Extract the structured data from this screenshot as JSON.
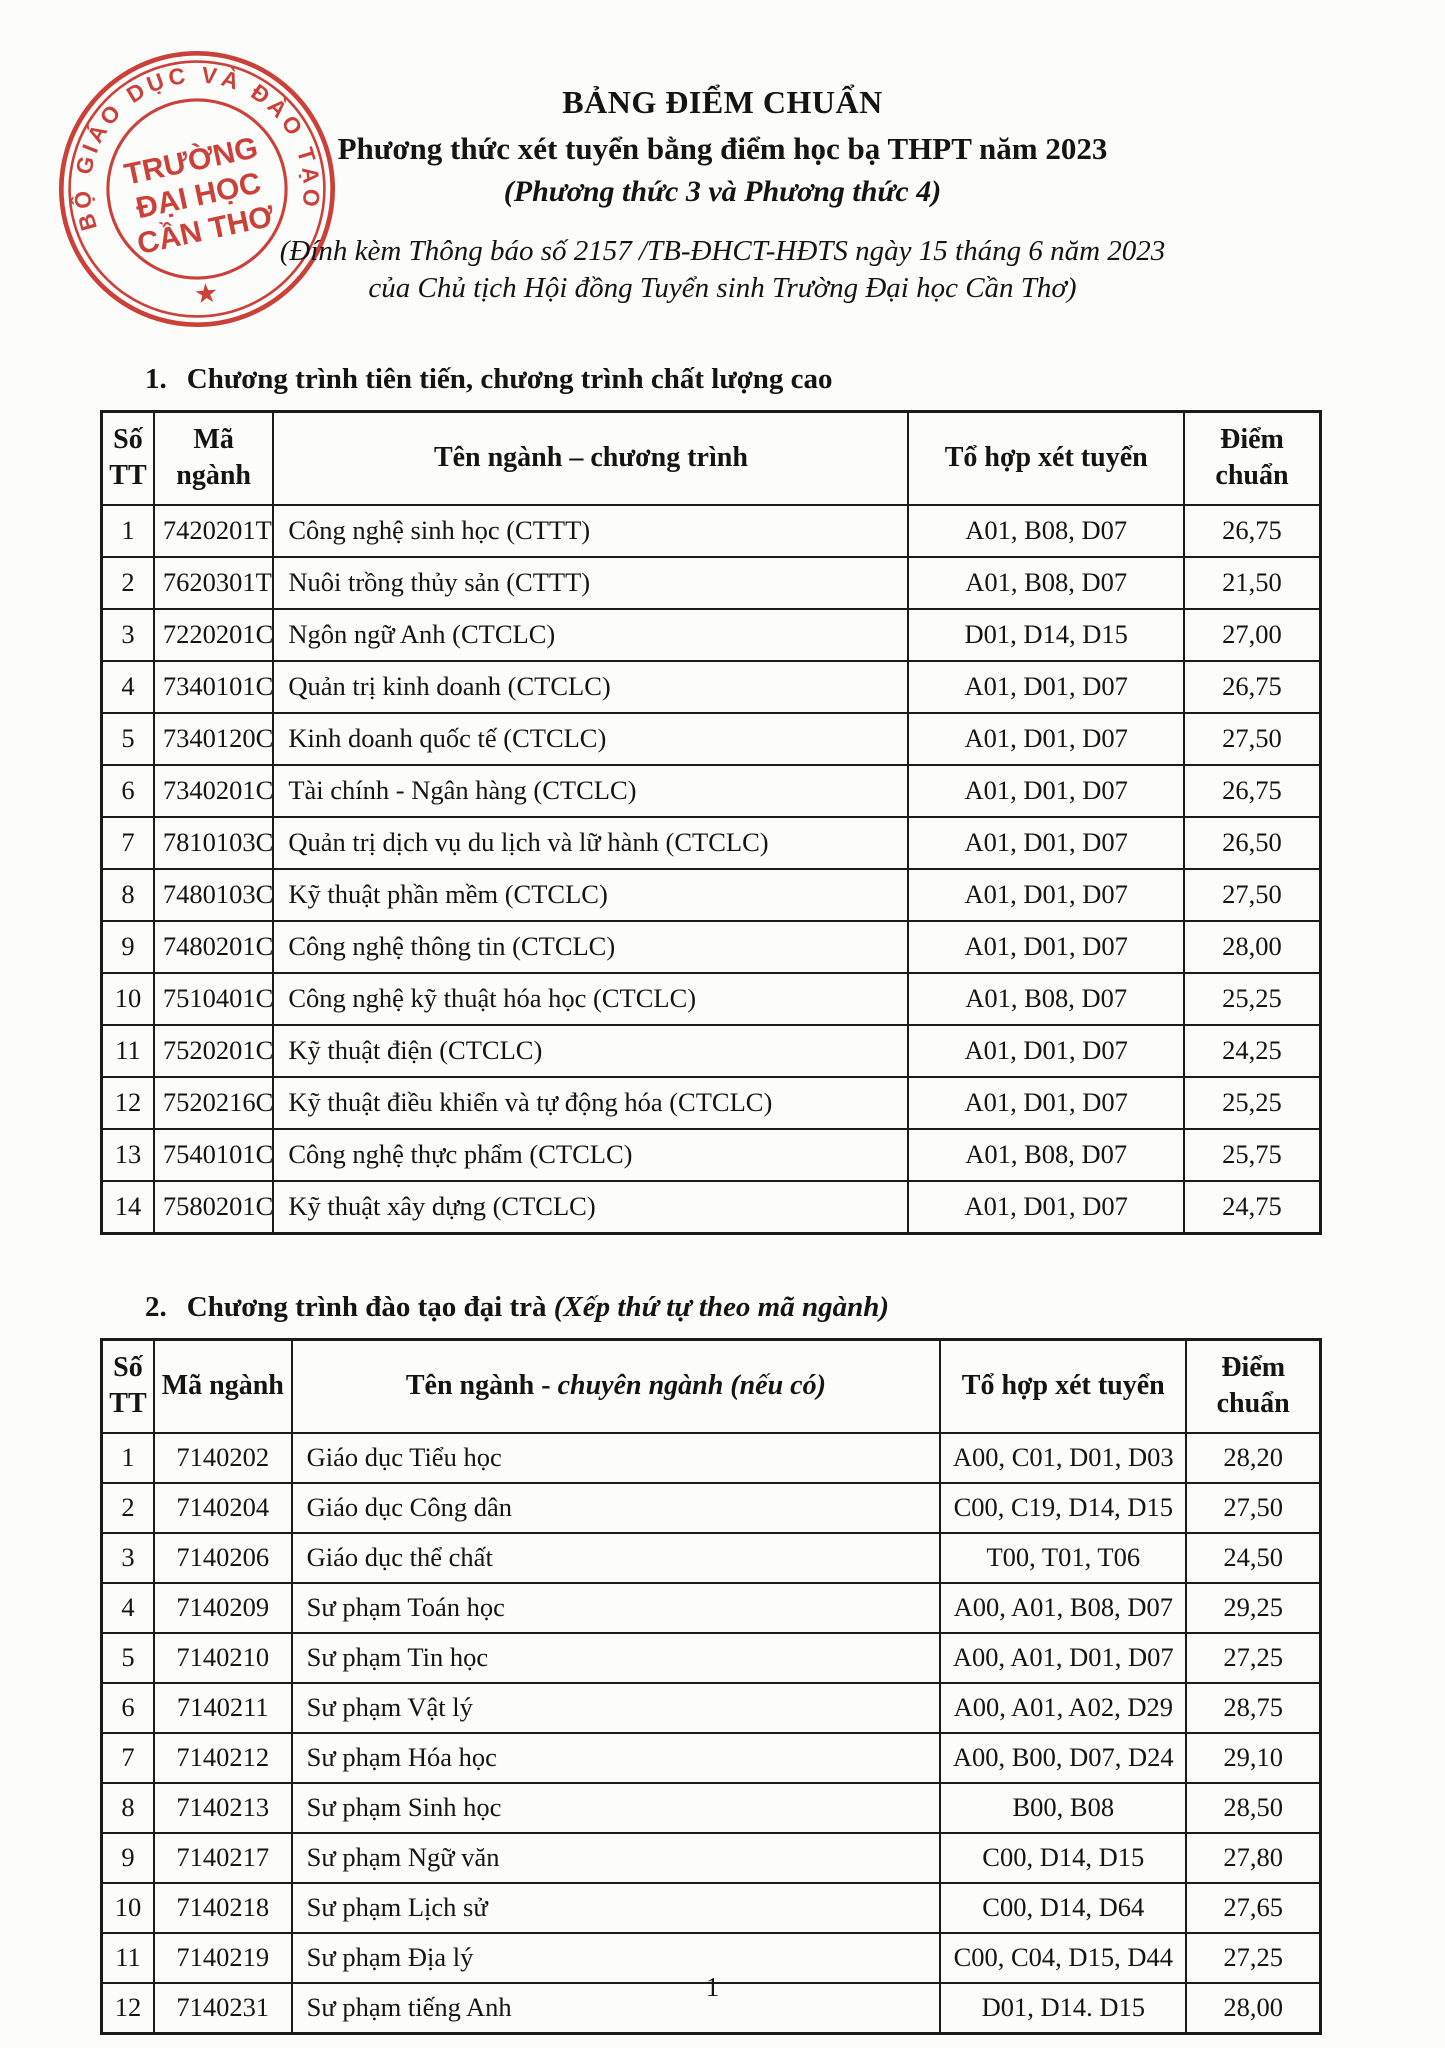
{
  "stamp": {
    "ring_text": "BỘ GIÁO DỤC VÀ ĐÀO TẠO",
    "center_line1": "TRƯỜNG",
    "center_line2": "ĐẠI HỌC",
    "center_line3": "CẦN THƠ",
    "star": "★",
    "color": "#c5271f"
  },
  "header": {
    "title": "BẢNG ĐIỂM CHUẨN",
    "subtitle": "Phương thức xét tuyển bằng điểm học bạ THPT năm 2023",
    "method_note": "(Phương thức 3 và Phương thức 4)",
    "attachment_line1": "(Đính kèm Thông báo số  2157 /TB-ĐHCT-HĐTS ngày 15 tháng 6 năm 2023",
    "attachment_line2": "của Chủ tịch Hội đồng Tuyển sinh Trường Đại học Cần Thơ)"
  },
  "section1": {
    "number": "1.",
    "title": "Chương trình tiên tiến, chương trình chất lượng cao",
    "table": {
      "col_widths": [
        "4.3%",
        "9.8%",
        "52.1%",
        "22.6%",
        "11.2%"
      ],
      "headers": [
        "Số\nTT",
        "Mã\nngành",
        "Tên ngành – chương trình",
        "Tổ hợp xét tuyển",
        "Điểm\nchuẩn"
      ],
      "rows": [
        [
          "1",
          "7420201T",
          "Công nghệ sinh học (CTTT)",
          "A01, B08, D07",
          "26,75"
        ],
        [
          "2",
          "7620301T",
          "Nuôi trồng thủy sản (CTTT)",
          "A01, B08, D07",
          "21,50"
        ],
        [
          "3",
          "7220201C",
          "Ngôn ngữ Anh (CTCLC)",
          "D01, D14, D15",
          "27,00"
        ],
        [
          "4",
          "7340101C",
          "Quản trị kinh doanh (CTCLC)",
          "A01, D01, D07",
          "26,75"
        ],
        [
          "5",
          "7340120C",
          "Kinh doanh quốc tế (CTCLC)",
          "A01, D01, D07",
          "27,50"
        ],
        [
          "6",
          "7340201C",
          "Tài chính - Ngân hàng (CTCLC)",
          "A01, D01, D07",
          "26,75"
        ],
        [
          "7",
          "7810103C",
          "Quản trị dịch vụ du lịch và lữ hành (CTCLC)",
          "A01, D01, D07",
          "26,50"
        ],
        [
          "8",
          "7480103C",
          "Kỹ thuật phần mềm (CTCLC)",
          "A01, D01, D07",
          "27,50"
        ],
        [
          "9",
          "7480201C",
          "Công nghệ thông tin (CTCLC)",
          "A01, D01, D07",
          "28,00"
        ],
        [
          "10",
          "7510401C",
          "Công nghệ kỹ thuật hóa học (CTCLC)",
          "A01, B08, D07",
          "25,25"
        ],
        [
          "11",
          "7520201C",
          "Kỹ thuật điện (CTCLC)",
          "A01, D01, D07",
          "24,25"
        ],
        [
          "12",
          "7520216C",
          "Kỹ thuật điều khiển và tự động hóa (CTCLC)",
          "A01, D01, D07",
          "25,25"
        ],
        [
          "13",
          "7540101C",
          "Công nghệ thực phẩm (CTCLC)",
          "A01, B08, D07",
          "25,75"
        ],
        [
          "14",
          "7580201C",
          "Kỹ thuật xây dựng (CTCLC)",
          "A01, D01, D07",
          "24,75"
        ]
      ]
    }
  },
  "section2": {
    "number": "2.",
    "title": "Chương trình đào tạo đại trà",
    "title_note": "(Xếp thứ tự theo mã ngành)",
    "table": {
      "col_widths": [
        "4.3%",
        "11.3%",
        "53.2%",
        "20.2%",
        "11.0%"
      ],
      "headers": [
        "Số\nTT",
        "Mã ngành",
        {
          "pre": "Tên ngành - ",
          "italic": "chuyên ngành (nếu có)"
        },
        "Tổ hợp xét tuyển",
        "Điểm\nchuẩn"
      ],
      "rows": [
        [
          "1",
          "7140202",
          "Giáo dục Tiểu học",
          "A00, C01, D01, D03",
          "28,20"
        ],
        [
          "2",
          "7140204",
          "Giáo dục Công dân",
          "C00, C19, D14, D15",
          "27,50"
        ],
        [
          "3",
          "7140206",
          "Giáo dục thể chất",
          "T00, T01, T06",
          "24,50"
        ],
        [
          "4",
          "7140209",
          "Sư phạm Toán học",
          "A00, A01, B08, D07",
          "29,25"
        ],
        [
          "5",
          "7140210",
          "Sư phạm Tin học",
          "A00, A01, D01, D07",
          "27,25"
        ],
        [
          "6",
          "7140211",
          "Sư phạm Vật lý",
          "A00, A01, A02, D29",
          "28,75"
        ],
        [
          "7",
          "7140212",
          "Sư phạm Hóa học",
          "A00, B00, D07, D24",
          "29,10"
        ],
        [
          "8",
          "7140213",
          "Sư phạm Sinh học",
          "B00, B08",
          "28,50"
        ],
        [
          "9",
          "7140217",
          "Sư phạm Ngữ văn",
          "C00, D14, D15",
          "27,80"
        ],
        [
          "10",
          "7140218",
          "Sư phạm Lịch sử",
          "C00, D14, D64",
          "27,65"
        ],
        [
          "11",
          "7140219",
          "Sư phạm Địa lý",
          "C00, C04, D15, D44",
          "27,25"
        ],
        [
          "12",
          "7140231",
          "Sư phạm tiếng Anh",
          "D01, D14. D15",
          "28,00"
        ]
      ]
    }
  },
  "footer": {
    "page_number": "1"
  }
}
